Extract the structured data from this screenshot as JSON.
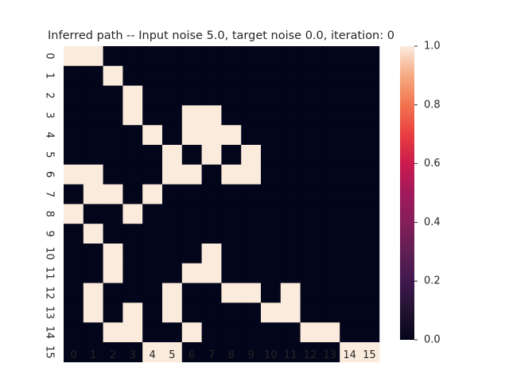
{
  "chart_data": {
    "type": "heatmap",
    "title": "Inferred path -- Input noise 5.0, target noise 0.0, iteration: 0",
    "xlabel": "",
    "ylabel": "",
    "x_tick_labels": [
      "0",
      "1",
      "2",
      "3",
      "4",
      "5",
      "6",
      "7",
      "8",
      "9",
      "10",
      "11",
      "12",
      "13",
      "14",
      "15"
    ],
    "y_tick_labels": [
      "0",
      "1",
      "2",
      "3",
      "4",
      "5",
      "6",
      "7",
      "8",
      "9",
      "10",
      "11",
      "12",
      "13",
      "14",
      "15"
    ],
    "values": [
      [
        1,
        1,
        0,
        0,
        0,
        0,
        0,
        0,
        0,
        0,
        0,
        0,
        0,
        0,
        0,
        0
      ],
      [
        0,
        0,
        1,
        0,
        0,
        0,
        0,
        0,
        0,
        0,
        0,
        0,
        0,
        0,
        0,
        0
      ],
      [
        0,
        0,
        0,
        1,
        0,
        0,
        0,
        0,
        0,
        0,
        0,
        0,
        0,
        0,
        0,
        0
      ],
      [
        0,
        0,
        0,
        1,
        0,
        0,
        1,
        1,
        0,
        0,
        0,
        0,
        0,
        0,
        0,
        0
      ],
      [
        0,
        0,
        0,
        0,
        1,
        0,
        1,
        1,
        1,
        0,
        0,
        0,
        0,
        0,
        0,
        0
      ],
      [
        0,
        0,
        0,
        0,
        0,
        1,
        0,
        1,
        0,
        1,
        0,
        0,
        0,
        0,
        0,
        0
      ],
      [
        1,
        1,
        0,
        0,
        0,
        1,
        1,
        0,
        1,
        1,
        0,
        0,
        0,
        0,
        0,
        0
      ],
      [
        0,
        1,
        1,
        0,
        1,
        0,
        0,
        0,
        0,
        0,
        0,
        0,
        0,
        0,
        0,
        0
      ],
      [
        1,
        0,
        0,
        1,
        0,
        0,
        0,
        0,
        0,
        0,
        0,
        0,
        0,
        0,
        0,
        0
      ],
      [
        0,
        1,
        0,
        0,
        0,
        0,
        0,
        0,
        0,
        0,
        0,
        0,
        0,
        0,
        0,
        0
      ],
      [
        0,
        0,
        1,
        0,
        0,
        0,
        0,
        1,
        0,
        0,
        0,
        0,
        0,
        0,
        0,
        0
      ],
      [
        0,
        0,
        1,
        0,
        0,
        0,
        1,
        1,
        0,
        0,
        0,
        0,
        0,
        0,
        0,
        0
      ],
      [
        0,
        1,
        0,
        0,
        0,
        1,
        0,
        0,
        1,
        1,
        0,
        1,
        0,
        0,
        0,
        0
      ],
      [
        0,
        1,
        0,
        1,
        0,
        1,
        0,
        0,
        0,
        0,
        1,
        1,
        0,
        0,
        0,
        0
      ],
      [
        0,
        0,
        1,
        1,
        0,
        0,
        1,
        0,
        0,
        0,
        0,
        0,
        1,
        1,
        0,
        0
      ],
      [
        0,
        0,
        0,
        0,
        1,
        1,
        0,
        0,
        0,
        0,
        0,
        0,
        0,
        0,
        1,
        1
      ]
    ],
    "colorbar": {
      "vmin": 0.0,
      "vmax": 1.0,
      "tick_labels": [
        "0.0",
        "0.2",
        "0.4",
        "0.6",
        "0.8",
        "1.0"
      ],
      "colormap": "rocket"
    },
    "colors": {
      "low": "#03051a",
      "high": "#faebdd"
    }
  }
}
